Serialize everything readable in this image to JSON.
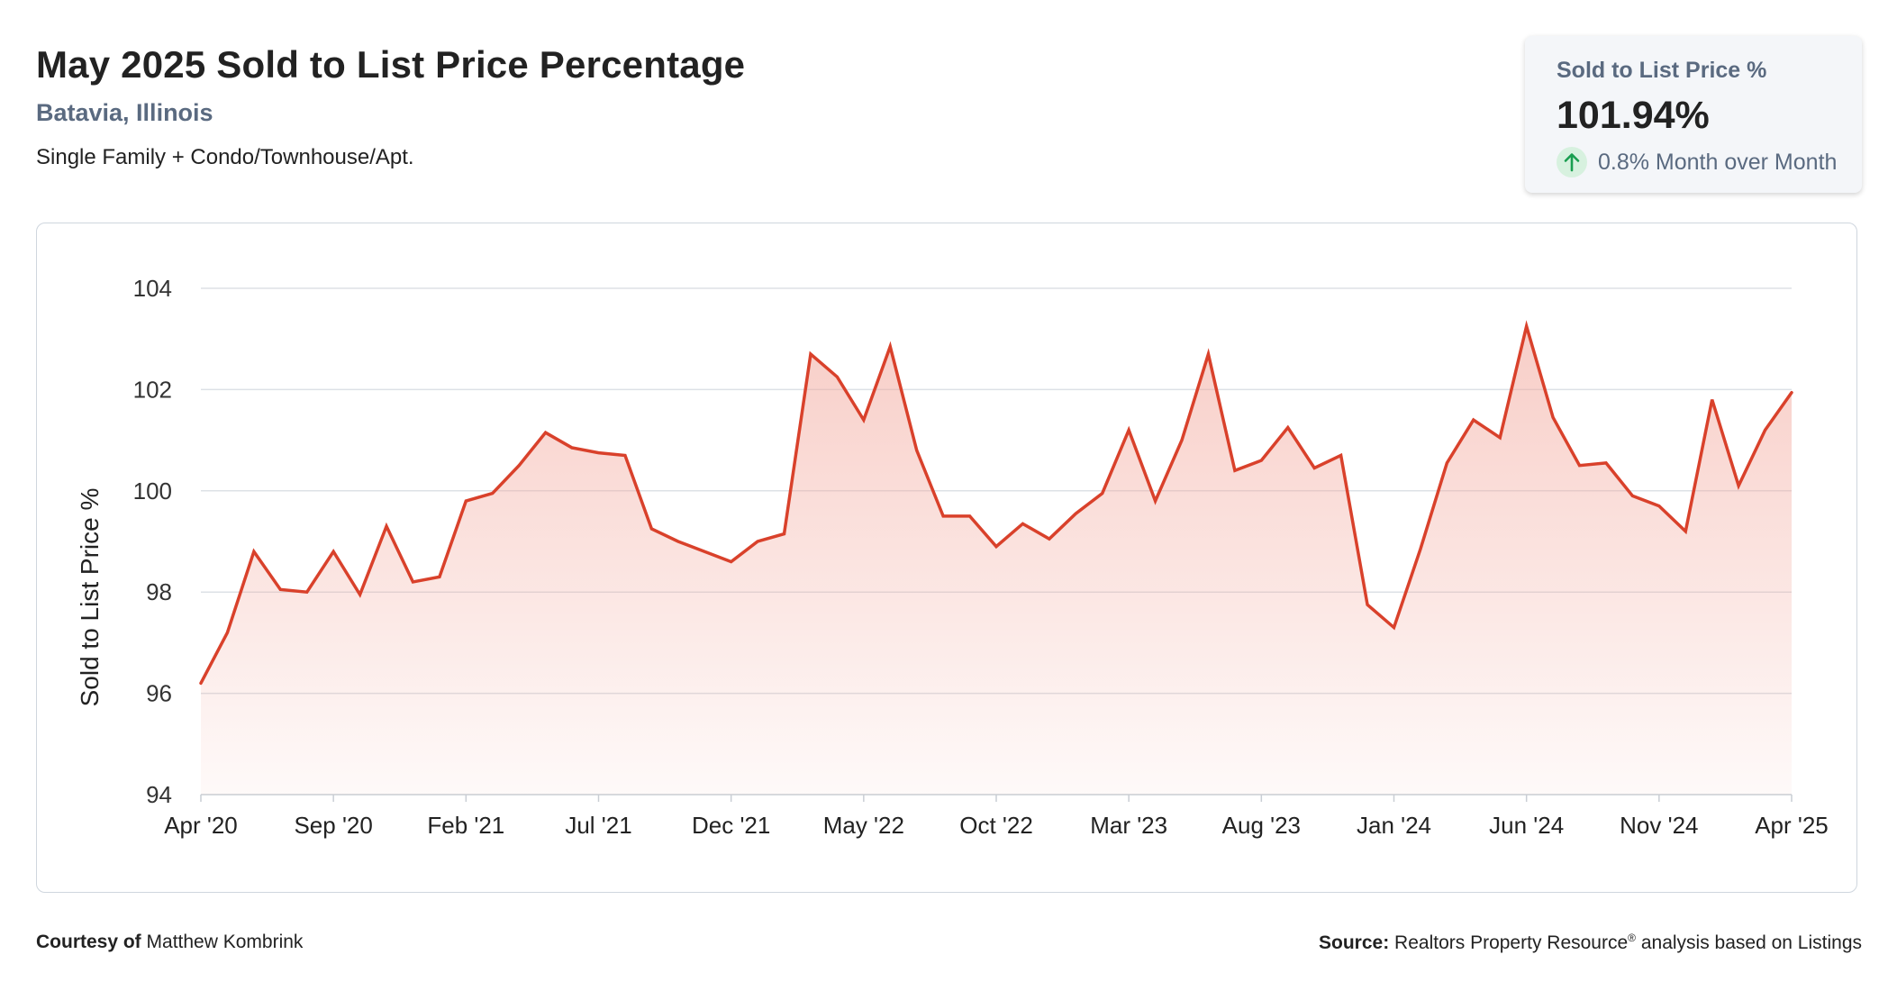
{
  "header": {
    "title": "May 2025 Sold to List Price Percentage",
    "location": "Batavia, Illinois",
    "segment": "Single Family + Condo/Townhouse/Apt."
  },
  "stat_card": {
    "label": "Sold to List Price %",
    "value": "101.94%",
    "change": "0.8% Month over Month",
    "direction_icon": "arrow-up-icon",
    "accent_color": "#1a9e50"
  },
  "footer": {
    "courtesy_label": "Courtesy of",
    "courtesy_name": "Matthew Kombrink",
    "source_label": "Source:",
    "source_text": "Realtors Property Resource",
    "source_mark": "®",
    "source_suffix": "analysis based on Listings"
  },
  "colors": {
    "line": "#d9412b",
    "grid": "#dde1e6",
    "axis_text": "#333333"
  },
  "chart_data": {
    "type": "area",
    "ylabel": "Sold to List Price %",
    "xlabel": "",
    "ylim": [
      94,
      104
    ],
    "yticks": [
      94,
      96,
      98,
      100,
      102,
      104
    ],
    "grid": true,
    "x_tick_labels": [
      "Apr '20",
      "Sep '20",
      "Feb '21",
      "Jul '21",
      "Dec '21",
      "May '22",
      "Oct '22",
      "Mar '23",
      "Aug '23",
      "Jan '24",
      "Jun '24",
      "Nov '24",
      "Apr '25"
    ],
    "x": [
      "2020-04",
      "2020-05",
      "2020-06",
      "2020-07",
      "2020-08",
      "2020-09",
      "2020-10",
      "2020-11",
      "2020-12",
      "2021-01",
      "2021-02",
      "2021-03",
      "2021-04",
      "2021-05",
      "2021-06",
      "2021-07",
      "2021-08",
      "2021-09",
      "2021-10",
      "2021-11",
      "2021-12",
      "2022-01",
      "2022-02",
      "2022-03",
      "2022-04",
      "2022-05",
      "2022-06",
      "2022-07",
      "2022-08",
      "2022-09",
      "2022-10",
      "2022-11",
      "2022-12",
      "2023-01",
      "2023-02",
      "2023-03",
      "2023-04",
      "2023-05",
      "2023-06",
      "2023-07",
      "2023-08",
      "2023-09",
      "2023-10",
      "2023-11",
      "2023-12",
      "2024-01",
      "2024-02",
      "2024-03",
      "2024-04",
      "2024-05",
      "2024-06",
      "2024-07",
      "2024-08",
      "2024-09",
      "2024-10",
      "2024-11",
      "2024-12",
      "2025-01",
      "2025-02",
      "2025-03",
      "2025-04"
    ],
    "series": [
      {
        "values": [
          96.2,
          97.2,
          98.8,
          98.05,
          98.0,
          98.8,
          97.95,
          99.3,
          98.2,
          98.3,
          99.8,
          99.95,
          100.5,
          101.15,
          100.85,
          100.75,
          100.7,
          99.25,
          99.0,
          98.8,
          98.6,
          99.0,
          99.15,
          102.7,
          102.25,
          101.4,
          102.85,
          100.8,
          99.5,
          99.5,
          98.9,
          99.35,
          99.05,
          99.55,
          99.95,
          101.2,
          99.8,
          101.0,
          102.7,
          100.4,
          100.6,
          101.25,
          100.45,
          100.7,
          97.75,
          97.3,
          98.85,
          100.55,
          101.4,
          101.05,
          103.25,
          101.45,
          100.5,
          100.55,
          99.9,
          99.7,
          99.2,
          101.8,
          100.1,
          101.2,
          101.94
        ]
      }
    ]
  }
}
